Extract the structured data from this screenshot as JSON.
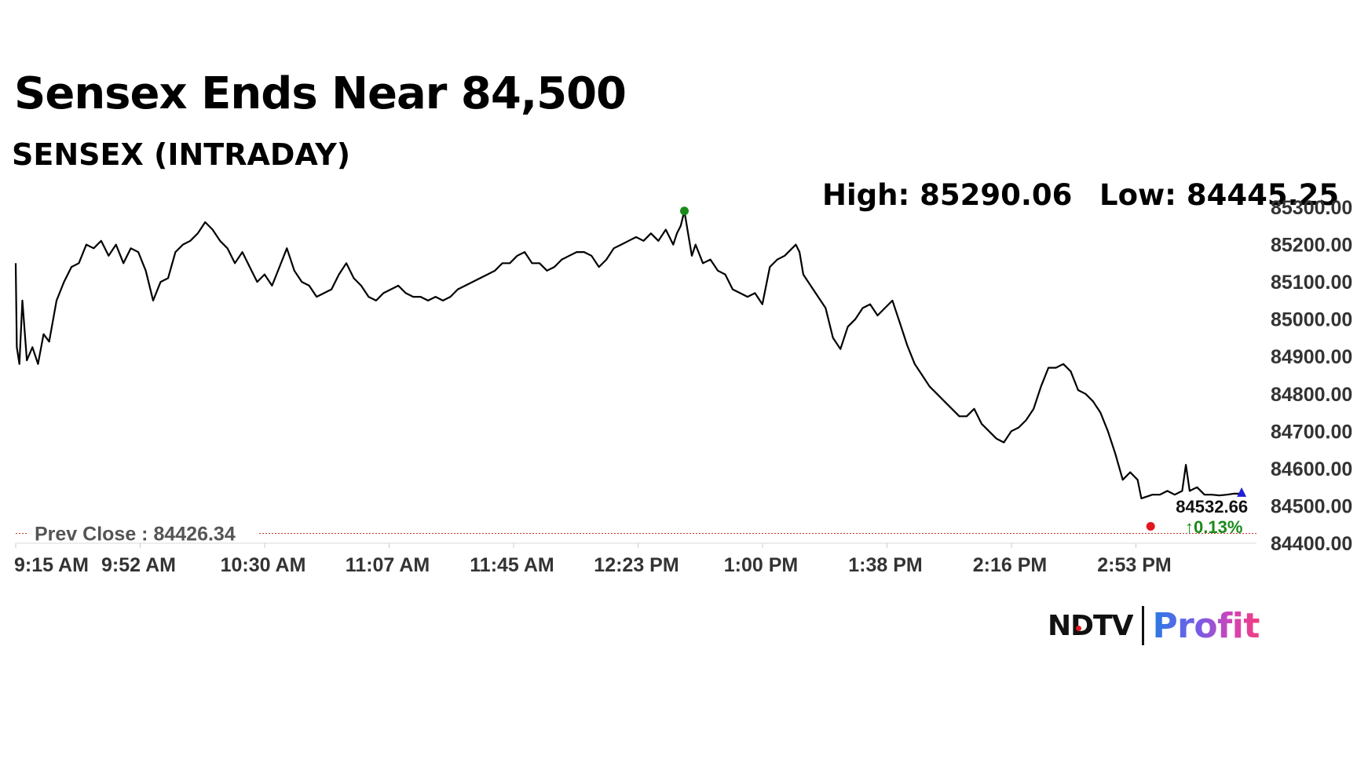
{
  "header": {
    "headline": "Sensex Ends Near 84,500",
    "subtitle": "SENSEX (INTRADAY)",
    "high_text": "High: 85290.06",
    "low_text": "Low: 84445.25"
  },
  "branding": {
    "ndtv": "NDTV",
    "profit": "Profit"
  },
  "colors": {
    "line": "#000000",
    "prev_close_line": "#c0392b",
    "high_marker": "#1a8a1a",
    "last_marker": "#1f1fd6",
    "low_marker": "#e3161e",
    "change_up": "#1a8a1a"
  },
  "chart_data": {
    "type": "line",
    "series": [
      {
        "values": [
          [
            0,
            85150
          ],
          [
            0.3,
            84925
          ],
          [
            1,
            84880
          ],
          [
            1.8,
            85050
          ],
          [
            3,
            84890
          ],
          [
            4.5,
            84925
          ],
          [
            6,
            84880
          ],
          [
            7.5,
            84960
          ],
          [
            9,
            84940
          ],
          [
            11,
            85050
          ],
          [
            13,
            85100
          ],
          [
            15,
            85140
          ],
          [
            17,
            85150
          ],
          [
            19,
            85200
          ],
          [
            21,
            85190
          ],
          [
            23,
            85210
          ],
          [
            25,
            85170
          ],
          [
            27,
            85200
          ],
          [
            29,
            85150
          ],
          [
            31,
            85190
          ],
          [
            33,
            85180
          ],
          [
            35,
            85130
          ],
          [
            37,
            85050
          ],
          [
            39,
            85100
          ],
          [
            41,
            85110
          ],
          [
            43,
            85180
          ],
          [
            45,
            85200
          ],
          [
            47,
            85210
          ],
          [
            49,
            85230
          ],
          [
            51,
            85260
          ],
          [
            53,
            85240
          ],
          [
            55,
            85210
          ],
          [
            57,
            85190
          ],
          [
            59,
            85150
          ],
          [
            61,
            85180
          ],
          [
            63,
            85140
          ],
          [
            65,
            85100
          ],
          [
            67,
            85120
          ],
          [
            69,
            85090
          ],
          [
            71,
            85140
          ],
          [
            73,
            85190
          ],
          [
            75,
            85130
          ],
          [
            77,
            85100
          ],
          [
            79,
            85090
          ],
          [
            81,
            85060
          ],
          [
            83,
            85070
          ],
          [
            85,
            85080
          ],
          [
            87,
            85120
          ],
          [
            89,
            85150
          ],
          [
            91,
            85110
          ],
          [
            93,
            85090
          ],
          [
            95,
            85060
          ],
          [
            97,
            85050
          ],
          [
            99,
            85070
          ],
          [
            101,
            85080
          ],
          [
            103,
            85090
          ],
          [
            105,
            85070
          ],
          [
            107,
            85060
          ],
          [
            109,
            85060
          ],
          [
            111,
            85050
          ],
          [
            113,
            85060
          ],
          [
            115,
            85050
          ],
          [
            117,
            85060
          ],
          [
            119,
            85080
          ],
          [
            121,
            85090
          ],
          [
            123,
            85100
          ],
          [
            125,
            85110
          ],
          [
            127,
            85120
          ],
          [
            129,
            85130
          ],
          [
            131,
            85150
          ],
          [
            133,
            85150
          ],
          [
            135,
            85170
          ],
          [
            137,
            85180
          ],
          [
            139,
            85150
          ],
          [
            141,
            85150
          ],
          [
            143,
            85130
          ],
          [
            145,
            85140
          ],
          [
            147,
            85160
          ],
          [
            149,
            85170
          ],
          [
            151,
            85180
          ],
          [
            153,
            85180
          ],
          [
            155,
            85170
          ],
          [
            157,
            85140
          ],
          [
            159,
            85160
          ],
          [
            161,
            85190
          ],
          [
            163,
            85200
          ],
          [
            165,
            85210
          ],
          [
            167,
            85220
          ],
          [
            169,
            85210
          ],
          [
            171,
            85230
          ],
          [
            173,
            85210
          ],
          [
            175,
            85240
          ],
          [
            177,
            85200
          ],
          [
            178,
            85230
          ],
          [
            179,
            85250
          ],
          [
            180,
            85290
          ],
          [
            181,
            85230
          ],
          [
            182,
            85170
          ],
          [
            183,
            85200
          ],
          [
            185,
            85150
          ],
          [
            187,
            85160
          ],
          [
            189,
            85130
          ],
          [
            191,
            85120
          ],
          [
            193,
            85080
          ],
          [
            195,
            85070
          ],
          [
            197,
            85060
          ],
          [
            199,
            85070
          ],
          [
            201,
            85040
          ],
          [
            203,
            85140
          ],
          [
            205,
            85160
          ],
          [
            207,
            85170
          ],
          [
            209,
            85190
          ],
          [
            210,
            85200
          ],
          [
            211,
            85180
          ],
          [
            212,
            85120
          ],
          [
            214,
            85090
          ],
          [
            216,
            85060
          ],
          [
            218,
            85030
          ],
          [
            220,
            84950
          ],
          [
            222,
            84920
          ],
          [
            224,
            84980
          ],
          [
            226,
            85000
          ],
          [
            228,
            85030
          ],
          [
            230,
            85040
          ],
          [
            232,
            85010
          ],
          [
            234,
            85030
          ],
          [
            236,
            85050
          ],
          [
            238,
            84990
          ],
          [
            240,
            84930
          ],
          [
            242,
            84880
          ],
          [
            244,
            84850
          ],
          [
            246,
            84820
          ],
          [
            248,
            84800
          ],
          [
            250,
            84780
          ],
          [
            252,
            84760
          ],
          [
            254,
            84740
          ],
          [
            256,
            84740
          ],
          [
            258,
            84760
          ],
          [
            260,
            84720
          ],
          [
            262,
            84700
          ],
          [
            264,
            84680
          ],
          [
            266,
            84670
          ],
          [
            268,
            84700
          ],
          [
            270,
            84710
          ],
          [
            272,
            84730
          ],
          [
            274,
            84760
          ],
          [
            276,
            84820
          ],
          [
            278,
            84870
          ],
          [
            280,
            84870
          ],
          [
            282,
            84880
          ],
          [
            284,
            84860
          ],
          [
            286,
            84810
          ],
          [
            288,
            84800
          ],
          [
            290,
            84780
          ],
          [
            292,
            84750
          ],
          [
            294,
            84700
          ],
          [
            296,
            84640
          ],
          [
            298,
            84570
          ],
          [
            300,
            84590
          ],
          [
            302,
            84570
          ],
          [
            303,
            84520
          ],
          [
            306,
            84530
          ],
          [
            308,
            84530
          ],
          [
            310,
            84540
          ],
          [
            312,
            84530
          ],
          [
            314,
            84540
          ],
          [
            315,
            84610
          ],
          [
            316,
            84540
          ],
          [
            318,
            84550
          ],
          [
            320,
            84530
          ],
          [
            322,
            84530
          ],
          [
            324,
            84528
          ],
          [
            326,
            84530
          ],
          [
            328,
            84533
          ],
          [
            330,
            84532.66
          ]
        ]
      }
    ],
    "x_time_labels": [
      "9:15 AM",
      "9:52 AM",
      "10:30 AM",
      "11:07 AM",
      "11:45 AM",
      "12:23 PM",
      "1:00 PM",
      "1:38 PM",
      "2:16 PM",
      "2:53 PM"
    ],
    "xlim": [
      0,
      334
    ],
    "ylim": [
      84400,
      85300
    ],
    "y_ticks": [
      "84400.00",
      "84500.00",
      "84600.00",
      "84700.00",
      "84800.00",
      "84900.00",
      "85000.00",
      "85100.00",
      "85200.00",
      "85300.00"
    ],
    "prev_close": {
      "label": "Prev Close : 84426.34",
      "value": 84426.34
    },
    "high": {
      "x": 180,
      "value": 85290.06
    },
    "low": {
      "x": 305.5,
      "value": 84445.25
    },
    "last": {
      "x": 330,
      "value": 84532.66,
      "label": "84532.66",
      "change_label": "↑0.13%"
    }
  }
}
